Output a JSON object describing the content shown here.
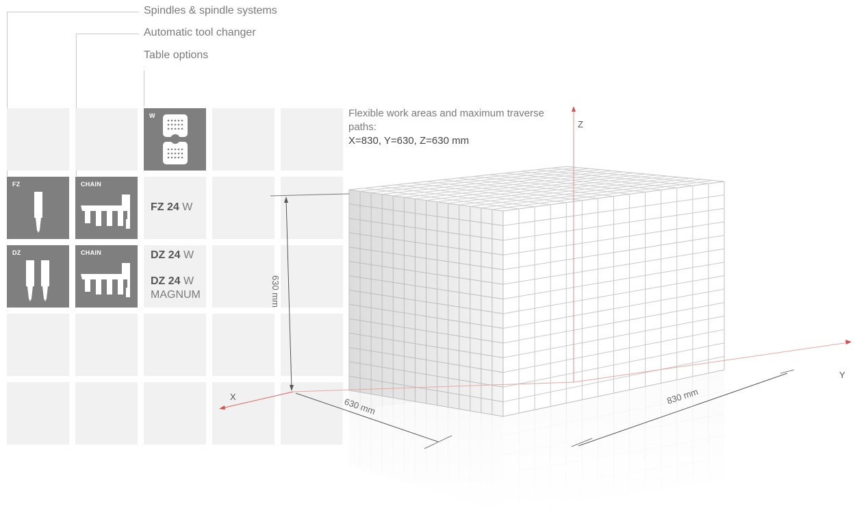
{
  "legend": {
    "spindles": "Spindles & spindle systems",
    "tool_changer": "Automatic tool changer",
    "table_options": "Table options"
  },
  "tiles": {
    "table_w": "W",
    "fz": "FZ",
    "dz": "DZ",
    "chain1": "CHAIN",
    "chain2": "CHAIN"
  },
  "models": {
    "fz24_bold": "FZ 24",
    "fz24_suffix": "W",
    "dz24_bold": "DZ 24",
    "dz24_suffix": "W",
    "dz24m_bold": "DZ 24",
    "dz24m_suffix": "W",
    "dz24m_sub": "MAGNUM"
  },
  "info": {
    "line1": "Flexible work areas and maximum traverse paths:",
    "line2": "X=830, Y=630, Z=630 mm"
  },
  "axes": {
    "x": "X",
    "y": "Y",
    "z": "Z"
  },
  "dimensions": {
    "height": "630 mm",
    "depth": "630 mm",
    "width": "830 mm"
  },
  "colors": {
    "tile_gray": "#7f7f7f",
    "cell_gray": "#f1f1f1",
    "axis_red": "#e06060"
  }
}
